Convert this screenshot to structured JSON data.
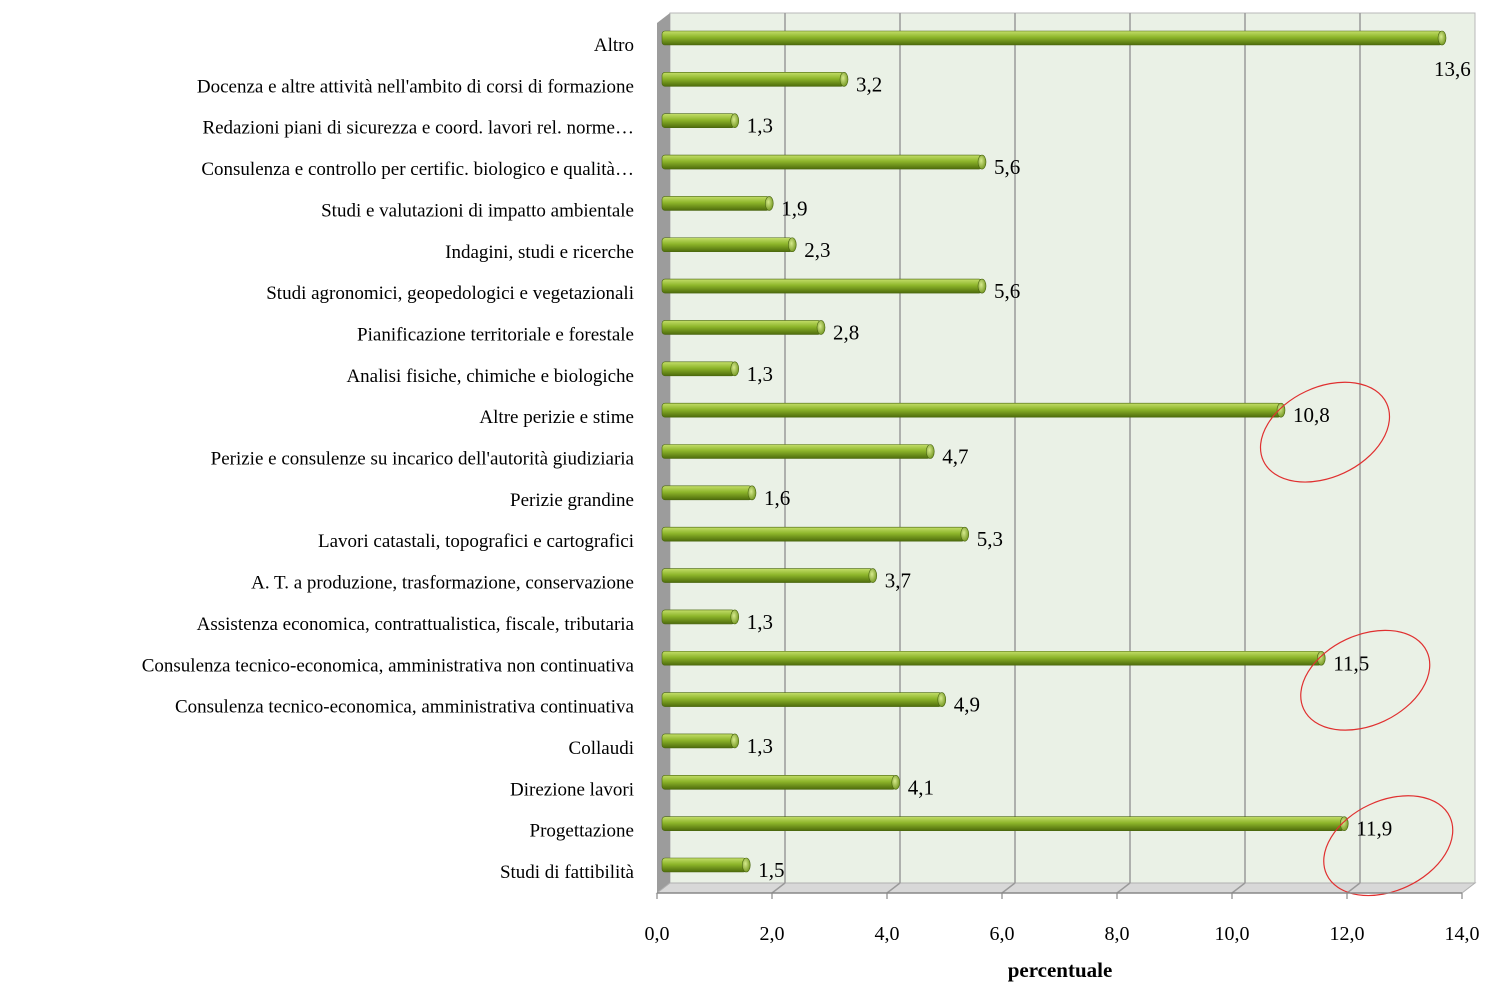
{
  "chart_data": {
    "type": "bar",
    "orientation": "horizontal",
    "xlabel": "percentuale",
    "ylabel": "",
    "xlim": [
      0,
      14
    ],
    "x_ticks": [
      "0,0",
      "2,0",
      "4,0",
      "6,0",
      "8,0",
      "10,0",
      "12,0",
      "14,0"
    ],
    "categories": [
      "Altro",
      "Docenza e altre attività nell'ambito di corsi di formazione",
      "Redazioni piani di sicurezza e coord. lavori rel. norme…",
      "Consulenza e controllo per certific. biologico e qualità…",
      "Studi e valutazioni di impatto ambientale",
      "Indagini, studi e ricerche",
      "Studi agronomici, geopedologici e vegetazionali",
      "Pianificazione territoriale e forestale",
      "Analisi fisiche, chimiche e biologiche",
      "Altre perizie e stime",
      "Perizie e consulenze su incarico dell'autorità giudiziaria",
      "Perizie grandine",
      "Lavori catastali, topografici e cartografici",
      "A. T. a produzione, trasformazione, conservazione",
      "Assistenza economica, contrattualistica, fiscale, tributaria",
      "Consulenza tecnico-economica, amministrativa non continuativa",
      "Consulenza tecnico-economica, amministrativa continuativa",
      "Collaudi",
      "Direzione lavori",
      "Progettazione",
      "Studi di fattibilità"
    ],
    "values": [
      13.6,
      3.2,
      1.3,
      5.6,
      1.9,
      2.3,
      5.6,
      2.8,
      1.3,
      10.8,
      4.7,
      1.6,
      5.3,
      3.7,
      1.3,
      11.5,
      4.9,
      1.3,
      4.1,
      11.9,
      1.5
    ],
    "value_labels": [
      "13,6",
      "3,2",
      "1,3",
      "5,6",
      "1,9",
      "2,3",
      "5,6",
      "2,8",
      "1,3",
      "10,8",
      "4,7",
      "1,6",
      "5,3",
      "3,7",
      "1,3",
      "11,5",
      "4,9",
      "1,3",
      "4,1",
      "11,9",
      "1,5"
    ],
    "highlighted_categories": [
      "Altre perizie e stime",
      "Consulenza tecnico-economica, amministrativa non continuativa",
      "Progettazione"
    ],
    "grid": true,
    "legend": "none",
    "colors": {
      "bar": "#7ea61e",
      "bar_light": "#c4de6a",
      "bar_dark": "#5c7d12",
      "plot_background": "#eaf1e6",
      "grid": "#9a9a9a",
      "highlight_circle": "#e03030"
    }
  }
}
